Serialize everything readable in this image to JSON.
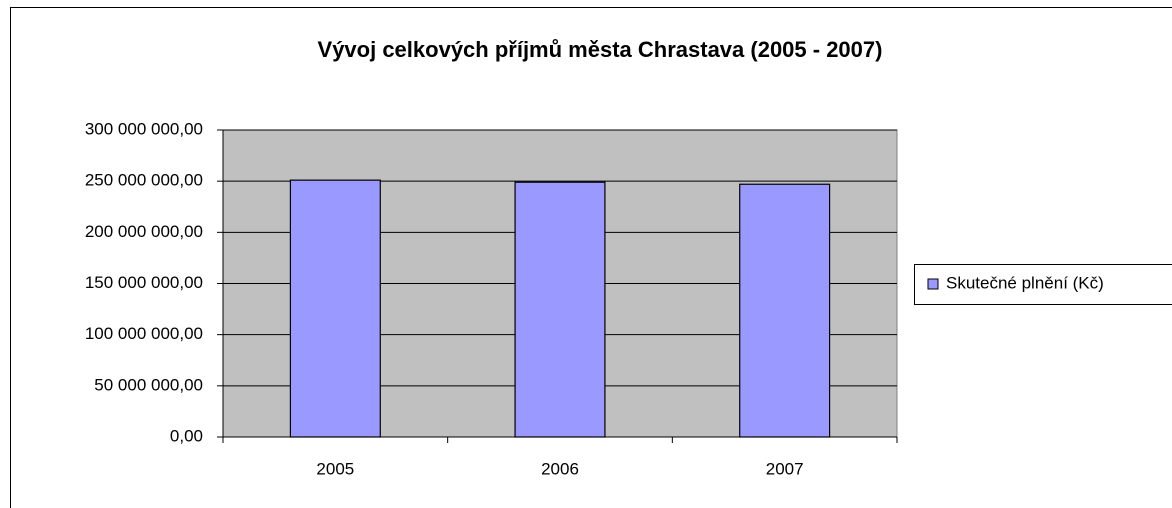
{
  "chart_data": {
    "type": "bar",
    "title": "Vývoj celkových příjmů města Chrastava (2005 - 2007)",
    "categories": [
      "2005",
      "2006",
      "2007"
    ],
    "series": [
      {
        "name": "Skutečné plnění (Kč)",
        "color": "#9999ff",
        "values": [
          251000000,
          249000000,
          247000000
        ]
      }
    ],
    "ylim": [
      0,
      300000000
    ],
    "yticks": [
      {
        "value": 0,
        "label": "0,00"
      },
      {
        "value": 50000000,
        "label": "50 000 000,00"
      },
      {
        "value": 100000000,
        "label": "100 000 000,00"
      },
      {
        "value": 150000000,
        "label": "150 000 000,00"
      },
      {
        "value": 200000000,
        "label": "200 000 000,00"
      },
      {
        "value": 250000000,
        "label": "250 000 000,00"
      },
      {
        "value": 300000000,
        "label": "300 000 000,00"
      }
    ],
    "grid": true,
    "legend": "right"
  }
}
